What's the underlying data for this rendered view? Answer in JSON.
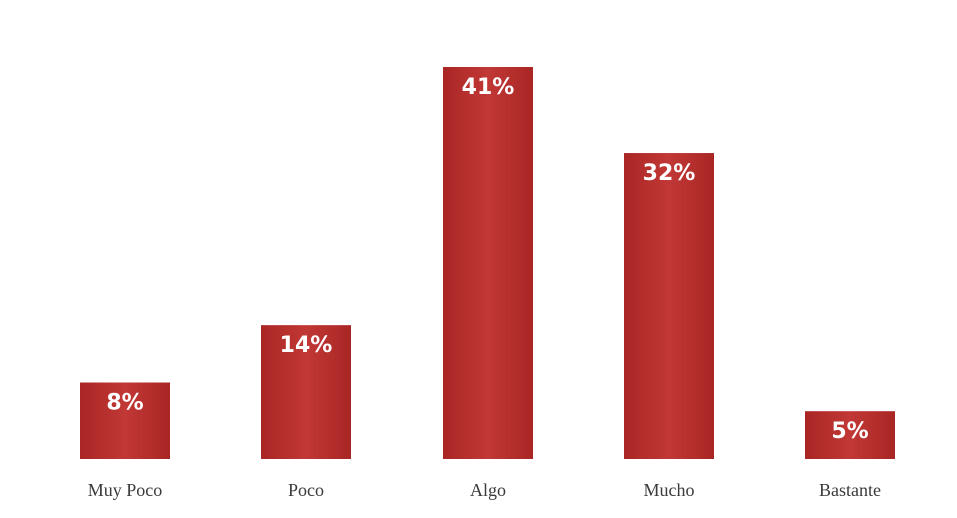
{
  "chart_data": {
    "type": "bar",
    "title": "",
    "categories": [
      "Muy Poco",
      "Poco",
      "Algo",
      "Mucho",
      "Bastante"
    ],
    "values": [
      8,
      14,
      41,
      32,
      5
    ],
    "value_labels": [
      "8%",
      "14%",
      "41%",
      "32%",
      "5%"
    ],
    "ylim": [
      0,
      41
    ],
    "grid": false,
    "legend": "none",
    "bar_color": "#b5302f"
  }
}
